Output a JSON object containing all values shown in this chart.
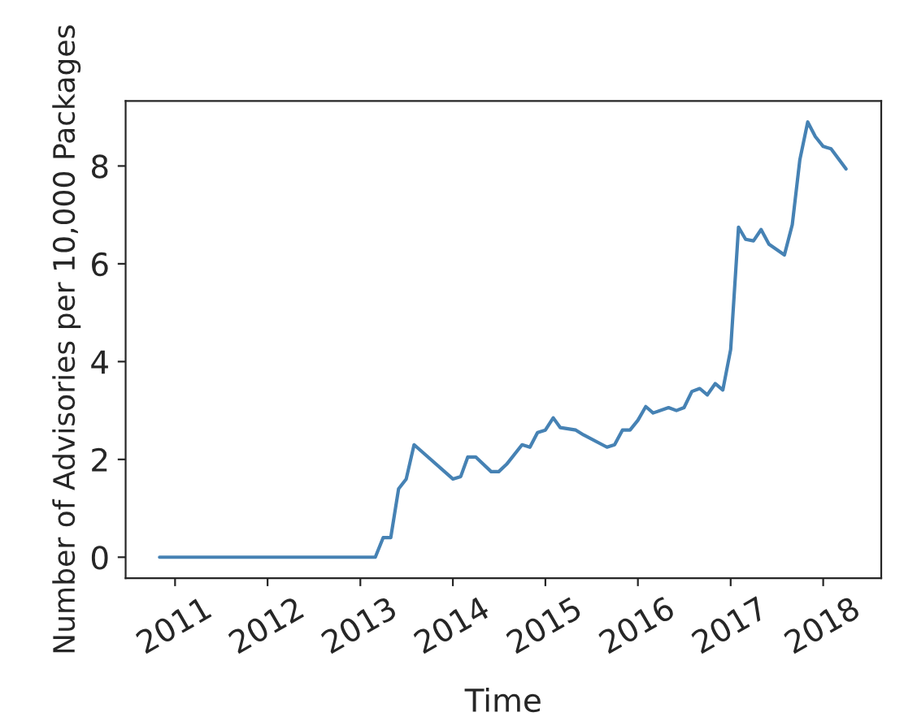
{
  "chart_data": {
    "type": "line",
    "xlabel": "Time",
    "ylabel": "Number of Advisories per 10,000 Packages",
    "x": [
      "2010-11",
      "2013-03",
      "2013-04",
      "2013-05",
      "2013-06",
      "2013-07",
      "2013-08",
      "2014-01",
      "2014-02",
      "2014-03",
      "2014-04",
      "2014-06",
      "2014-07",
      "2014-08",
      "2014-10",
      "2014-11",
      "2014-12",
      "2015-01",
      "2015-02",
      "2015-03",
      "2015-05",
      "2015-06",
      "2015-09",
      "2015-10",
      "2015-11",
      "2015-12",
      "2016-01",
      "2016-02",
      "2016-03",
      "2016-05",
      "2016-06",
      "2016-07",
      "2016-08",
      "2016-09",
      "2016-10",
      "2016-11",
      "2016-12",
      "2017-01",
      "2017-02",
      "2017-03",
      "2017-04",
      "2017-05",
      "2017-06",
      "2017-08",
      "2017-09",
      "2017-10",
      "2017-11",
      "2017-12",
      "2018-01",
      "2018-02",
      "2018-04"
    ],
    "series": [
      {
        "color": "#4682b4",
        "values": [
          0,
          0,
          0.4,
          0.4,
          1.4,
          1.6,
          2.3,
          1.6,
          1.65,
          2.05,
          2.05,
          1.75,
          1.75,
          1.9,
          2.3,
          2.25,
          2.55,
          2.6,
          2.85,
          2.65,
          2.6,
          2.5,
          2.25,
          2.3,
          2.6,
          2.6,
          2.8,
          3.08,
          2.95,
          3.06,
          3.0,
          3.06,
          3.39,
          3.45,
          3.32,
          3.55,
          3.42,
          4.25,
          6.75,
          6.5,
          6.47,
          6.7,
          6.4,
          6.18,
          6.8,
          8.13,
          8.9,
          8.6,
          8.4,
          8.35,
          7.94
        ]
      }
    ],
    "xlim": [
      "2010-06-20",
      "2018-08-18"
    ],
    "xticks": [
      "2011",
      "2012",
      "2013",
      "2014",
      "2015",
      "2016",
      "2017",
      "2018"
    ],
    "ylim": [
      -0.43,
      9.33
    ],
    "yticks": [
      0,
      2,
      4,
      6,
      8
    ],
    "grid": false,
    "marker": "none",
    "line_style": "solid"
  }
}
